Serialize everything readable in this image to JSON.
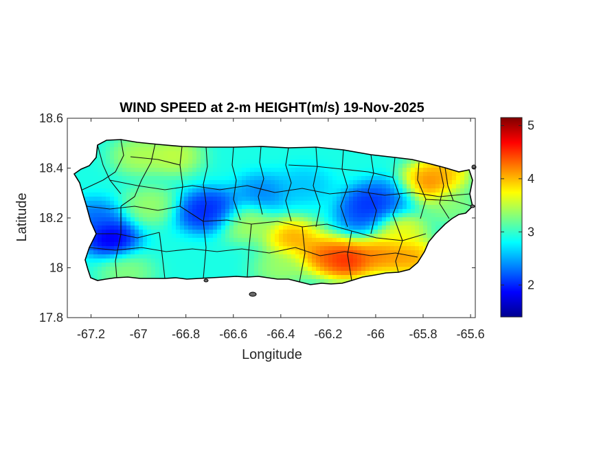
{
  "chart_data": {
    "type": "heatmap",
    "title": "WIND SPEED at 2-m HEIGHT(m/s) 19-Nov-2025",
    "xlabel": "Longitude",
    "ylabel": "Latitude",
    "xlim": [
      -67.3,
      -65.58
    ],
    "ylim": [
      17.8,
      18.6
    ],
    "xticks": [
      -67.2,
      -67,
      -66.8,
      -66.6,
      -66.4,
      -66.2,
      -66,
      -65.8,
      -65.6
    ],
    "xtick_labels": [
      "-67.2",
      "-67",
      "-66.8",
      "-66.6",
      "-66.4",
      "-66.2",
      "-66",
      "-65.8",
      "-65.6"
    ],
    "yticks": [
      17.8,
      18,
      18.2,
      18.4,
      18.6
    ],
    "ytick_labels": [
      "17.8",
      "18",
      "18.2",
      "18.4",
      "18.6"
    ],
    "colormap": "jet",
    "colorbar": {
      "min": 1.4,
      "max": 5.15,
      "ticks": [
        2,
        3,
        4,
        5
      ],
      "tick_labels": [
        "2",
        "3",
        "4",
        "5"
      ],
      "placement": "right"
    },
    "grid": false,
    "base_value": 2.9,
    "hotspots": [
      {
        "lon": -67.12,
        "lat": 18.12,
        "value": 1.45
      },
      {
        "lon": -67.18,
        "lat": 18.2,
        "value": 2.1
      },
      {
        "lon": -66.73,
        "lat": 18.22,
        "value": 1.8
      },
      {
        "lon": -66.68,
        "lat": 18.24,
        "value": 1.9
      },
      {
        "lon": -66.48,
        "lat": 18.3,
        "value": 2.2
      },
      {
        "lon": -66.3,
        "lat": 18.33,
        "value": 2.5
      },
      {
        "lon": -66.02,
        "lat": 18.26,
        "value": 1.8
      },
      {
        "lon": -65.92,
        "lat": 18.29,
        "value": 2.1
      },
      {
        "lon": -66.05,
        "lat": 18.21,
        "value": 2.0
      },
      {
        "lon": -66.12,
        "lat": 18.03,
        "value": 5.0
      },
      {
        "lon": -66.22,
        "lat": 18.05,
        "value": 4.6
      },
      {
        "lon": -66.35,
        "lat": 18.12,
        "value": 4.4
      },
      {
        "lon": -65.98,
        "lat": 18.05,
        "value": 4.5
      },
      {
        "lon": -65.85,
        "lat": 18.04,
        "value": 4.4
      },
      {
        "lon": -65.8,
        "lat": 18.33,
        "value": 4.6
      },
      {
        "lon": -65.72,
        "lat": 18.38,
        "value": 4.3
      },
      {
        "lon": -65.9,
        "lat": 18.15,
        "value": 3.9
      },
      {
        "lon": -66.85,
        "lat": 18.45,
        "value": 3.7
      },
      {
        "lon": -67.0,
        "lat": 18.45,
        "value": 3.6
      },
      {
        "lon": -66.55,
        "lat": 18.18,
        "value": 3.6
      },
      {
        "lon": -67.05,
        "lat": 17.98,
        "value": 3.4
      },
      {
        "lon": -66.95,
        "lat": 18.25,
        "value": 3.5
      },
      {
        "lon": -65.68,
        "lat": 18.25,
        "value": 3.4
      },
      {
        "lon": -66.4,
        "lat": 18.0,
        "value": 3.5
      }
    ]
  }
}
